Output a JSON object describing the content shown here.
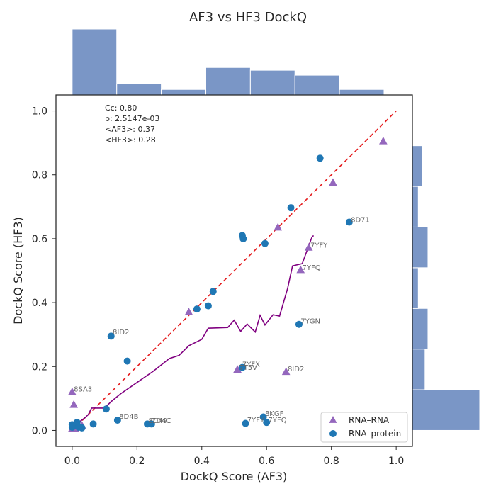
{
  "chart_data": {
    "type": "scatter",
    "title": "AF3 vs HF3 DockQ",
    "xlabel": "DockQ Score (AF3)",
    "ylabel": "DockQ Score (HF3)",
    "xlim": [
      -0.05,
      1.05
    ],
    "ylim": [
      -0.05,
      1.05
    ],
    "xticks": [
      0.0,
      0.2,
      0.4,
      0.6,
      0.8,
      1.0
    ],
    "yticks": [
      0.0,
      0.2,
      0.4,
      0.6,
      0.8,
      1.0
    ],
    "tick_labels": [
      "0.0",
      "0.2",
      "0.4",
      "0.6",
      "0.8",
      "1.0"
    ],
    "grid": false,
    "legend_placement": "lower-right",
    "stats": [
      "Cc: 0.80",
      "p: 2.5147e-03",
      "<AF3>: 0.37",
      "<HF3>: 0.28"
    ],
    "series": [
      {
        "name": "RNA–RNA",
        "marker": "triangle",
        "color": "#9467bd",
        "points": [
          [
            0.96,
            0.905
          ],
          [
            0.805,
            0.775
          ],
          [
            0.635,
            0.635
          ],
          [
            0.73,
            0.572
          ],
          [
            0.705,
            0.502
          ],
          [
            0.36,
            0.37
          ],
          [
            0.51,
            0.19
          ],
          [
            0.66,
            0.183
          ],
          [
            0.0,
            0.12
          ],
          [
            0.005,
            0.08
          ],
          [
            0.0,
            0.005
          ],
          [
            0.01,
            0.005
          ],
          [
            0.02,
            0.01
          ],
          [
            0.03,
            0.015
          ]
        ]
      },
      {
        "name": "RNA–protein",
        "marker": "circle",
        "color": "#1f77b4",
        "points": [
          [
            0.765,
            0.852
          ],
          [
            0.855,
            0.652
          ],
          [
            0.675,
            0.697
          ],
          [
            0.525,
            0.61
          ],
          [
            0.528,
            0.6
          ],
          [
            0.595,
            0.585
          ],
          [
            0.435,
            0.435
          ],
          [
            0.42,
            0.39
          ],
          [
            0.385,
            0.38
          ],
          [
            0.7,
            0.332
          ],
          [
            0.12,
            0.295
          ],
          [
            0.17,
            0.217
          ],
          [
            0.525,
            0.197
          ],
          [
            0.105,
            0.067
          ],
          [
            0.065,
            0.02
          ],
          [
            0.0,
            0.018
          ],
          [
            0.0,
            0.01
          ],
          [
            0.015,
            0.025
          ],
          [
            0.02,
            0.01
          ],
          [
            0.03,
            0.008
          ],
          [
            0.14,
            0.032
          ],
          [
            0.232,
            0.02
          ],
          [
            0.245,
            0.02
          ],
          [
            0.59,
            0.042
          ],
          [
            0.6,
            0.025
          ],
          [
            0.535,
            0.022
          ]
        ]
      }
    ],
    "reference_line": {
      "from": [
        0.0,
        0.0
      ],
      "to": [
        1.0,
        1.0
      ],
      "color": "#e41a1c",
      "style": "dashed"
    },
    "trend_line": {
      "color": "#800080",
      "points": [
        [
          0.0,
          0.02
        ],
        [
          0.02,
          0.025
        ],
        [
          0.04,
          0.04
        ],
        [
          0.05,
          0.05
        ],
        [
          0.06,
          0.07
        ],
        [
          0.1,
          0.07
        ],
        [
          0.12,
          0.09
        ],
        [
          0.15,
          0.115
        ],
        [
          0.2,
          0.15
        ],
        [
          0.25,
          0.185
        ],
        [
          0.3,
          0.225
        ],
        [
          0.33,
          0.235
        ],
        [
          0.36,
          0.265
        ],
        [
          0.4,
          0.285
        ],
        [
          0.42,
          0.32
        ],
        [
          0.48,
          0.322
        ],
        [
          0.5,
          0.345
        ],
        [
          0.52,
          0.31
        ],
        [
          0.54,
          0.333
        ],
        [
          0.565,
          0.308
        ],
        [
          0.58,
          0.36
        ],
        [
          0.595,
          0.33
        ],
        [
          0.62,
          0.362
        ],
        [
          0.64,
          0.358
        ],
        [
          0.665,
          0.445
        ],
        [
          0.68,
          0.515
        ],
        [
          0.71,
          0.522
        ],
        [
          0.74,
          0.605
        ],
        [
          0.745,
          0.61
        ]
      ]
    },
    "annotations": [
      {
        "text": "7YFY",
        "x": 0.735,
        "y": 0.572
      },
      {
        "text": "8D71",
        "x": 0.86,
        "y": 0.652
      },
      {
        "text": "7YFQ",
        "x": 0.71,
        "y": 0.502
      },
      {
        "text": "7YGN",
        "x": 0.705,
        "y": 0.335
      },
      {
        "text": "8ID2",
        "x": 0.125,
        "y": 0.3
      },
      {
        "text": "7YFX",
        "x": 0.525,
        "y": 0.2
      },
      {
        "text": "7T5V",
        "x": 0.515,
        "y": 0.19
      },
      {
        "text": "8ID2",
        "x": 0.665,
        "y": 0.185
      },
      {
        "text": "8SA3",
        "x": 0.005,
        "y": 0.122
      },
      {
        "text": "8D4B",
        "x": 0.145,
        "y": 0.037
      },
      {
        "text": "8D49",
        "x": 0.235,
        "y": 0.023
      },
      {
        "text": "7D4C",
        "x": 0.245,
        "y": 0.023
      },
      {
        "text": "8KGF",
        "x": 0.595,
        "y": 0.045
      },
      {
        "text": "7YFY",
        "x": 0.54,
        "y": 0.025
      },
      {
        "text": "7YFQ",
        "x": 0.605,
        "y": 0.025
      }
    ],
    "marginal_x_hist": {
      "color": "#7a96c6",
      "bins": [
        0.0,
        0.1375,
        0.275,
        0.4125,
        0.55,
        0.6875,
        0.825,
        0.9625
      ],
      "counts": [
        12,
        2,
        1,
        5,
        4.5,
        3.6,
        1
      ]
    },
    "marginal_y_hist": {
      "color": "#7a96c6",
      "bins": [
        0.0,
        0.1273,
        0.2546,
        0.3819,
        0.5092,
        0.6365,
        0.7638,
        0.8911
      ],
      "counts": [
        16,
        3,
        3.7,
        1.4,
        3.7,
        1.4,
        2.3
      ]
    }
  }
}
